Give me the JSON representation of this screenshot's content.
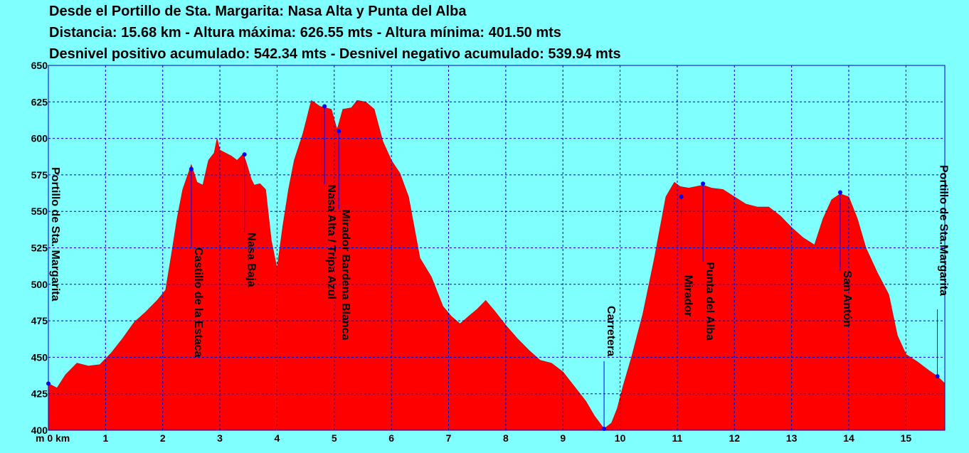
{
  "header": {
    "line1": "Desde el Portillo de Sta. Margarita:  Nasa Alta y Punta del Alba",
    "line2": "Distancia: 15.68 km - Altura máxima: 626.55 mts - Altura mínima: 401.50 mts",
    "line3": "Desnivel positivo acumulado: 542.34 mts - Desnivel negativo acumulado: 539.94 mts"
  },
  "chart_data": {
    "type": "area",
    "title": "Desde el Portillo de Sta. Margarita:  Nasa Alta y Punta del Alba",
    "xlabel": "m 0 km",
    "ylabel": "",
    "xlim": [
      0,
      15.68
    ],
    "ylim": [
      400,
      650
    ],
    "grid": true,
    "fill_color": "#FF0000",
    "background_color": "#80FFFF",
    "grid_color": "#0000CC",
    "marker_color": "#0000FF",
    "xticks": [
      "0",
      "1",
      "2",
      "3",
      "4",
      "5",
      "6",
      "7",
      "8",
      "9",
      "10",
      "11",
      "12",
      "13",
      "14",
      "15"
    ],
    "yticks": [
      "400",
      "425",
      "450",
      "475",
      "500",
      "525",
      "550",
      "575",
      "600",
      "625",
      "650"
    ],
    "profile": [
      [
        0,
        432
      ],
      [
        0.15,
        429
      ],
      [
        0.3,
        438
      ],
      [
        0.5,
        446
      ],
      [
        0.7,
        444
      ],
      [
        0.9,
        445
      ],
      [
        1.1,
        453
      ],
      [
        1.3,
        463
      ],
      [
        1.5,
        474
      ],
      [
        1.7,
        481
      ],
      [
        1.9,
        489
      ],
      [
        2.05,
        496
      ],
      [
        2.15,
        520
      ],
      [
        2.25,
        545
      ],
      [
        2.35,
        565
      ],
      [
        2.5,
        582
      ],
      [
        2.6,
        570
      ],
      [
        2.7,
        568
      ],
      [
        2.8,
        585
      ],
      [
        2.9,
        590
      ],
      [
        2.95,
        600
      ],
      [
        3.0,
        592
      ],
      [
        3.1,
        590
      ],
      [
        3.2,
        588
      ],
      [
        3.3,
        585
      ],
      [
        3.4,
        589
      ],
      [
        3.45,
        585
      ],
      [
        3.55,
        572
      ],
      [
        3.6,
        568
      ],
      [
        3.7,
        569
      ],
      [
        3.8,
        565
      ],
      [
        3.9,
        530
      ],
      [
        4.0,
        511
      ],
      [
        4.1,
        540
      ],
      [
        4.2,
        565
      ],
      [
        4.3,
        585
      ],
      [
        4.45,
        603
      ],
      [
        4.6,
        626
      ],
      [
        4.75,
        622
      ],
      [
        4.85,
        621
      ],
      [
        4.95,
        620
      ],
      [
        5.05,
        606
      ],
      [
        5.15,
        620
      ],
      [
        5.3,
        621
      ],
      [
        5.4,
        626
      ],
      [
        5.55,
        625
      ],
      [
        5.7,
        620
      ],
      [
        5.85,
        598
      ],
      [
        6.0,
        585
      ],
      [
        6.15,
        576
      ],
      [
        6.3,
        560
      ],
      [
        6.5,
        518
      ],
      [
        6.7,
        505
      ],
      [
        6.9,
        485
      ],
      [
        7.05,
        478
      ],
      [
        7.2,
        473
      ],
      [
        7.35,
        478
      ],
      [
        7.5,
        483
      ],
      [
        7.65,
        489
      ],
      [
        7.8,
        482
      ],
      [
        8.0,
        472
      ],
      [
        8.2,
        463
      ],
      [
        8.4,
        455
      ],
      [
        8.6,
        448
      ],
      [
        8.8,
        446
      ],
      [
        9.0,
        440
      ],
      [
        9.2,
        430
      ],
      [
        9.4,
        420
      ],
      [
        9.55,
        410
      ],
      [
        9.72,
        401
      ],
      [
        9.85,
        405
      ],
      [
        9.95,
        415
      ],
      [
        10.05,
        430
      ],
      [
        10.2,
        450
      ],
      [
        10.4,
        480
      ],
      [
        10.6,
        518
      ],
      [
        10.8,
        560
      ],
      [
        10.95,
        570
      ],
      [
        11.05,
        567
      ],
      [
        11.2,
        566
      ],
      [
        11.45,
        568
      ],
      [
        11.6,
        566
      ],
      [
        11.8,
        565
      ],
      [
        12.0,
        560
      ],
      [
        12.2,
        555
      ],
      [
        12.4,
        553
      ],
      [
        12.6,
        553
      ],
      [
        12.8,
        547
      ],
      [
        13.0,
        539
      ],
      [
        13.2,
        532
      ],
      [
        13.4,
        527
      ],
      [
        13.55,
        545
      ],
      [
        13.7,
        558
      ],
      [
        13.85,
        562
      ],
      [
        14.0,
        560
      ],
      [
        14.15,
        545
      ],
      [
        14.3,
        525
      ],
      [
        14.5,
        508
      ],
      [
        14.7,
        493
      ],
      [
        14.85,
        465
      ],
      [
        15.0,
        452
      ],
      [
        15.2,
        447
      ],
      [
        15.4,
        441
      ],
      [
        15.55,
        437
      ],
      [
        15.68,
        432
      ]
    ],
    "waypoints": [
      {
        "name": "Portillo de Sta. Margarita",
        "km": 0.0,
        "alt": 432,
        "side": "down"
      },
      {
        "name": "Castillo de la Estaca",
        "km": 2.5,
        "alt": 579,
        "side": "down"
      },
      {
        "name": "Nasa Baja",
        "km": 3.43,
        "alt": 589,
        "side": "down"
      },
      {
        "name": "Nasa Alta / Tripa Azul",
        "km": 4.83,
        "alt": 622,
        "side": "down"
      },
      {
        "name": "Mirador Bardena Blanca",
        "km": 5.08,
        "alt": 605,
        "side": "down"
      },
      {
        "name": "Carretera",
        "km": 9.72,
        "alt": 401,
        "side": "up"
      },
      {
        "name": "Mirador",
        "km": 11.07,
        "alt": 560,
        "side": "down"
      },
      {
        "name": "Punta del Alba",
        "km": 11.45,
        "alt": 569,
        "side": "down"
      },
      {
        "name": "San Antón",
        "km": 13.85,
        "alt": 563,
        "side": "down"
      },
      {
        "name": "Portillo de Sta.Margarita",
        "km": 15.55,
        "alt": 437,
        "side": "up"
      }
    ]
  }
}
